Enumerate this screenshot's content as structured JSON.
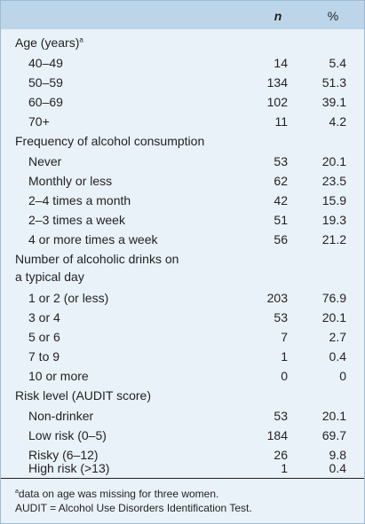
{
  "header": {
    "n_label": "n",
    "pct_label": "%"
  },
  "sections": {
    "age": {
      "label": "Age (years)",
      "sup": "a",
      "rows": [
        {
          "label": "40–49",
          "n": "14",
          "pct": "5.4"
        },
        {
          "label": "50–59",
          "n": "134",
          "pct": "51.3"
        },
        {
          "label": "60–69",
          "n": "102",
          "pct": "39.1"
        },
        {
          "label": "70+",
          "n": "11",
          "pct": "4.2"
        }
      ]
    },
    "frequency": {
      "label": "Frequency of alcohol consumption",
      "rows": [
        {
          "label": "Never",
          "n": "53",
          "pct": "20.1"
        },
        {
          "label": "Monthly or less",
          "n": "62",
          "pct": "23.5"
        },
        {
          "label": "2–4 times a month",
          "n": "42",
          "pct": "15.9"
        },
        {
          "label": "2–3 times a week",
          "n": "51",
          "pct": "19.3"
        },
        {
          "label": "4 or more times a week",
          "n": "56",
          "pct": "21.2"
        }
      ]
    },
    "drinks": {
      "label_line1": "Number of alcoholic drinks on",
      "label_line2": "a typical day",
      "rows": [
        {
          "label": "1 or 2 (or less)",
          "n": "203",
          "pct": "76.9"
        },
        {
          "label": "3 or 4",
          "n": "53",
          "pct": "20.1"
        },
        {
          "label": "5 or 6",
          "n": "7",
          "pct": "2.7"
        },
        {
          "label": "7 to 9",
          "n": "1",
          "pct": "0.4"
        },
        {
          "label": "10 or more",
          "n": "0",
          "pct": "0"
        }
      ]
    },
    "risk": {
      "label": "Risk level (AUDIT score)",
      "rows": [
        {
          "label": "Non-drinker",
          "n": "53",
          "pct": "20.1"
        },
        {
          "label": "Low risk (0–5)",
          "n": "184",
          "pct": "69.7"
        },
        {
          "label": "Risky (6–12)",
          "n": "26",
          "pct": "9.8"
        },
        {
          "label": "High risk (>13)",
          "n": "1",
          "pct": "0.4"
        }
      ]
    }
  },
  "footnotes": {
    "note_a_marker": "a",
    "note_a": "data on age was missing for three women.",
    "note_audit": "AUDIT = Alcohol Use Disorders Identification Test."
  }
}
